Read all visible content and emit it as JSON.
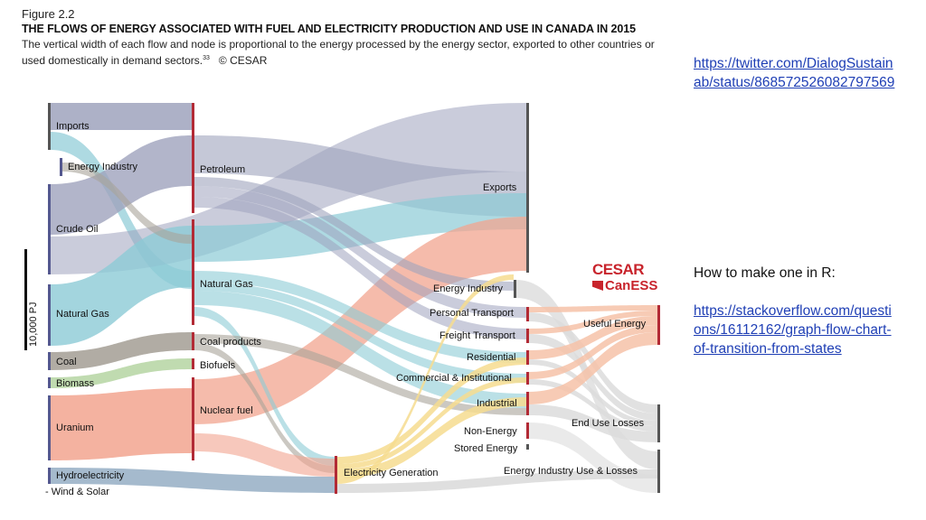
{
  "figure": {
    "label": "Figure 2.2",
    "title": "THE FLOWS OF ENERGY ASSOCIATED WITH FUEL AND ELECTRICITY PRODUCTION AND USE IN CANADA IN 2015",
    "subtitle": "The vertical width of each flow and node is proportional to the energy processed by the energy sector, exported to other countries or used domestically in demand sectors.",
    "footnote_ref": "33",
    "copyright": "© CESAR"
  },
  "scale_bar": {
    "label": "10,000 PJ"
  },
  "nodes": {
    "imports": "Imports",
    "energy_industry_src": "Energy Industry",
    "crude_oil": "Crude Oil",
    "natural_gas_src": "Natural Gas",
    "coal": "Coal",
    "biomass": "Biomass",
    "uranium": "Uranium",
    "hydro": "Hydroelectricity",
    "wind_solar": "- Wind & Solar",
    "petroleum": "Petroleum",
    "natural_gas_mid": "Natural Gas",
    "coal_products": "Coal products",
    "biofuels": "Biofuels",
    "nuclear_fuel": "Nuclear fuel",
    "electricity_generation": "Electricity Generation",
    "exports": "Exports",
    "energy_industry_dem": "Energy Industry",
    "personal_transport": "Personal Transport",
    "freight_transport": "Freight Transport",
    "residential": "Residential",
    "commercial": "Commercial & Institutional",
    "industrial": "Industrial",
    "non_energy": "Non-Energy",
    "stored_energy": "Stored Energy",
    "useful_energy": "Useful Energy",
    "end_use_losses": "End Use Losses",
    "energy_industry_losses": "Energy Industry Use & Losses"
  },
  "colors": {
    "imports": "#9fa3bd",
    "crude_oil": "#9fa3bd",
    "natural_gas": "#8ccbd6",
    "coal": "#a8a39a",
    "biomass": "#b9d7a7",
    "uranium": "#f2a48f",
    "hydro": "#9bb3c8",
    "electricity": "#f6dc8f",
    "useful": "#f6c2a8",
    "losses": "#dcdcdc",
    "node_bar_red": "#b22a35",
    "node_bar_blue": "#54588f",
    "node_bar_grey": "#555555"
  },
  "logos": {
    "cesar": "CESAR",
    "caness": "CanESS"
  },
  "notes": {
    "link1": "https://twitter.com/DialogSustainab/status/868572526082797569",
    "howto": "How to make one in R:",
    "link2": "https://stackoverflow.com/questions/16112162/graph-flow-chart-of-transition-from-states"
  }
}
